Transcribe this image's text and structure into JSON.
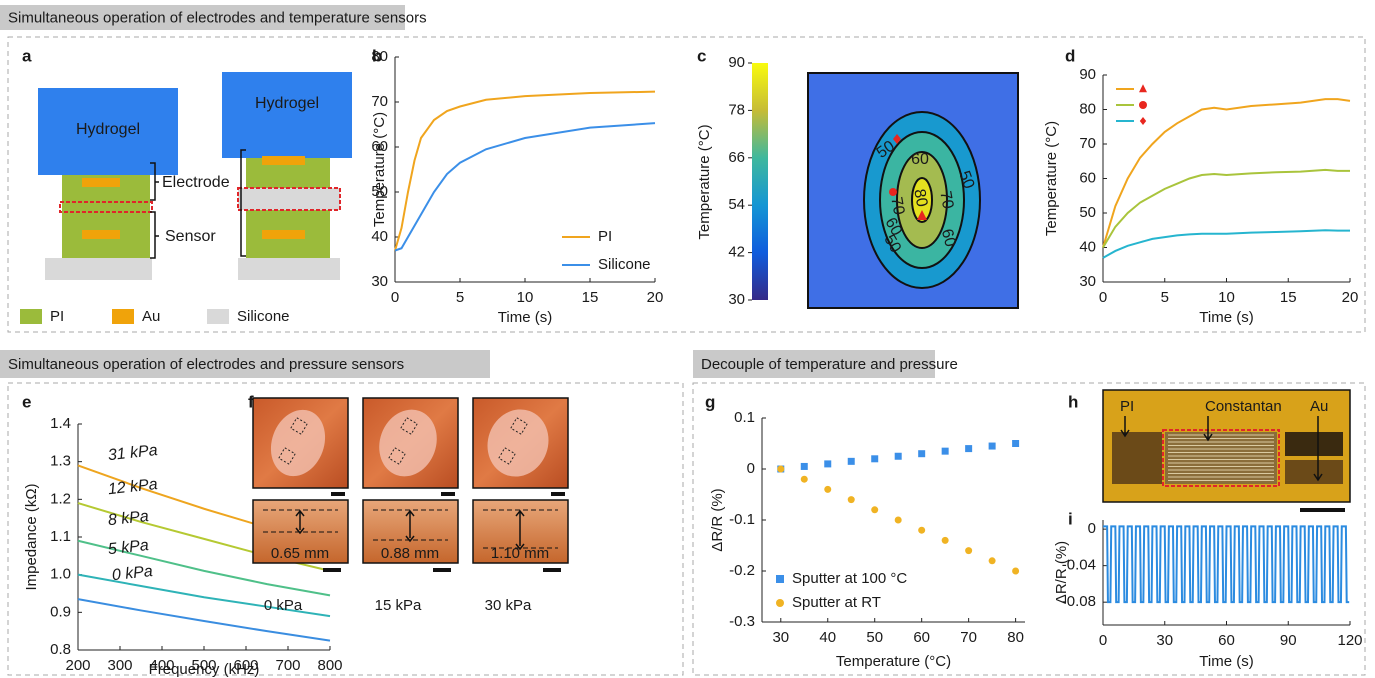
{
  "sections": [
    "Simultaneous operation of electrodes and temperature sensors",
    "Simultaneous operation of electrodes and pressure sensors",
    "Decouple of temperature and pressure"
  ],
  "panel_labels": [
    "a",
    "b",
    "c",
    "d",
    "e",
    "f",
    "g",
    "h",
    "i"
  ],
  "diagram_a": {
    "labels": [
      "Hydrogel",
      "Hydrogel",
      "Electrode",
      "Sensor"
    ],
    "legend": [
      "PI",
      "Au",
      "Silicone"
    ]
  },
  "photos_f": {
    "thickness": [
      "0.65 mm",
      "0.88 mm",
      "1.10 mm"
    ],
    "pressures": [
      "0 kPa",
      "15 kPa",
      "30 kPa"
    ]
  },
  "photo_h": {
    "labels": [
      "PI",
      "Constantan",
      "Au"
    ]
  },
  "chart_data": [
    {
      "type": "line",
      "xlabel": "Time (s)",
      "ylabel": "Temperature (°C)",
      "x": [
        0,
        0.5,
        1,
        1.5,
        2,
        3,
        4,
        5,
        7,
        10,
        15,
        20
      ],
      "series": [
        {
          "name": "PI",
          "color": "#f0a51e",
          "values": [
            37,
            42,
            50,
            57,
            62,
            66,
            68,
            69,
            70.5,
            71.3,
            72,
            72.3
          ]
        },
        {
          "name": "Silicone",
          "color": "#3b8fe8",
          "values": [
            37,
            37.5,
            40,
            42.5,
            45,
            50,
            54,
            56.5,
            59.5,
            62,
            64.3,
            65.3
          ]
        }
      ],
      "xlim": [
        0,
        20
      ],
      "xticks": [
        0,
        5,
        10,
        15,
        20
      ],
      "ylim": [
        30,
        80
      ],
      "yticks": [
        30,
        40,
        50,
        60,
        70,
        80
      ]
    },
    {
      "type": "heatmap",
      "ylabel": "Temperature (°C)",
      "ylim": [
        30,
        90
      ],
      "yticks": [
        30,
        42,
        54,
        66,
        78,
        90
      ],
      "contour_levels": [
        50,
        60,
        70,
        80
      ]
    },
    {
      "type": "line",
      "xlabel": "Time (s)",
      "ylabel": "Temperature (°C)",
      "marker_color": "#e8271f",
      "x": [
        0,
        1,
        2,
        3,
        4,
        5,
        6,
        7,
        8,
        9,
        10,
        12,
        14,
        16,
        18,
        19,
        20
      ],
      "series": [
        {
          "color": "#f0a51e",
          "marker": "triangle",
          "values": [
            40,
            52,
            60,
            66,
            70,
            73.5,
            76,
            78,
            80,
            80.5,
            80,
            81,
            81.5,
            82,
            83,
            83,
            82.5
          ]
        },
        {
          "color": "#a9c43c",
          "marker": "circle",
          "values": [
            40,
            46,
            50,
            53,
            55,
            57,
            58.5,
            60,
            61,
            61.3,
            61,
            61.5,
            61.8,
            62,
            62.5,
            62.2,
            62.2
          ]
        },
        {
          "color": "#26b5cf",
          "marker": "diamond",
          "values": [
            37,
            39,
            40.5,
            41.5,
            42.5,
            43,
            43.5,
            43.8,
            44,
            44,
            44,
            44.3,
            44.5,
            44.7,
            45,
            44.9,
            44.9
          ]
        }
      ],
      "xlim": [
        0,
        20
      ],
      "xticks": [
        0,
        5,
        10,
        15,
        20
      ],
      "ylim": [
        30,
        90
      ],
      "yticks": [
        30,
        40,
        50,
        60,
        70,
        80,
        90
      ]
    },
    {
      "type": "line",
      "xlabel": "Frequency (kHz)",
      "ylabel": "Impedance (kΩ)",
      "x": [
        200,
        350,
        500,
        650,
        800
      ],
      "series": [
        {
          "name": "31 kPa",
          "color": "#eea51f",
          "values": [
            1.29,
            1.23,
            1.175,
            1.125,
            1.075
          ]
        },
        {
          "name": "12 kPa",
          "color": "#b5c932",
          "values": [
            1.19,
            1.14,
            1.095,
            1.05,
            1.01
          ]
        },
        {
          "name": "8 kPa",
          "color": "#4fc089",
          "values": [
            1.09,
            1.05,
            1.01,
            0.975,
            0.945
          ]
        },
        {
          "name": "5 kPa",
          "color": "#2eb3b7",
          "values": [
            1.0,
            0.97,
            0.94,
            0.915,
            0.89
          ]
        },
        {
          "name": "0 kPa",
          "color": "#3a8de0",
          "values": [
            0.935,
            0.905,
            0.877,
            0.85,
            0.825
          ]
        }
      ],
      "xlim": [
        200,
        800
      ],
      "xticks": [
        200,
        300,
        400,
        500,
        600,
        700,
        800
      ],
      "ylim": [
        0.8,
        1.4
      ],
      "yticks": [
        0.8,
        0.9,
        {
          "value": 1,
          "label": "1.0"
        },
        1.1,
        1.2,
        1.3,
        1.4
      ]
    },
    {
      "type": "scatter",
      "xlabel": "Temperature (°C)",
      "ylabel": "ΔR/R (%)",
      "x": [
        30,
        35,
        40,
        45,
        50,
        55,
        60,
        65,
        70,
        75,
        80
      ],
      "series": [
        {
          "name": "Sputter at 100 °C",
          "color": "#3b8fe8",
          "marker": "square",
          "values": [
            0,
            0.005,
            0.01,
            0.015,
            0.02,
            0.025,
            0.03,
            0.035,
            0.04,
            0.045,
            0.05
          ]
        },
        {
          "name": "Sputter at RT",
          "color": "#f0b323",
          "marker": "circle",
          "values": [
            0,
            -0.02,
            -0.04,
            -0.06,
            -0.08,
            -0.1,
            -0.12,
            -0.14,
            -0.16,
            -0.18,
            -0.2
          ]
        }
      ],
      "xlim": [
        26,
        82
      ],
      "xticks": [
        30,
        40,
        50,
        60,
        70,
        80
      ],
      "ylim": [
        -0.3,
        0.1
      ],
      "yticks": [
        -0.3,
        -0.2,
        -0.1,
        0,
        0.1
      ]
    },
    {
      "type": "line",
      "xlabel": "Time (s)",
      "ylabel": "ΔR/R (%)",
      "x": [
        0,
        2,
        2.4,
        3.6,
        4,
        6,
        6.4,
        7.6,
        8,
        10,
        10.4,
        11.6,
        12,
        14,
        14.4,
        15.6,
        16,
        18,
        18.4,
        19.6,
        20,
        22,
        22.4,
        23.6,
        24,
        26,
        26.4,
        27.6,
        28,
        30,
        30.4,
        31.6,
        32,
        34,
        34.4,
        35.6,
        36,
        38,
        38.4,
        39.6,
        40,
        42,
        42.4,
        43.6,
        44,
        46,
        46.4,
        47.6,
        48,
        50,
        50.4,
        51.6,
        52,
        54,
        54.4,
        55.6,
        56,
        58,
        58.4,
        59.6,
        60,
        62,
        62.4,
        63.6,
        64,
        66,
        66.4,
        67.6,
        68,
        70,
        70.4,
        71.6,
        72,
        74,
        74.4,
        75.6,
        76,
        78,
        78.4,
        79.6,
        80,
        82,
        82.4,
        83.6,
        84,
        86,
        86.4,
        87.6,
        88,
        90,
        90.4,
        91.6,
        92,
        94,
        94.4,
        95.6,
        96,
        98,
        98.4,
        99.6,
        100,
        102,
        102.4,
        103.6,
        104,
        106,
        106.4,
        107.6,
        108,
        110,
        110.4,
        111.6,
        112,
        114,
        114.4,
        115.6,
        116,
        118,
        118.4,
        119.6
      ],
      "series": [
        {
          "color": "#2b8be0",
          "values": [
            0.003,
            0.003,
            -0.08,
            -0.08,
            0.003,
            0.003,
            -0.08,
            -0.08,
            0.003,
            0.003,
            -0.08,
            -0.08,
            0.003,
            0.003,
            -0.08,
            -0.08,
            0.003,
            0.003,
            -0.08,
            -0.08,
            0.003,
            0.003,
            -0.08,
            -0.08,
            0.003,
            0.003,
            -0.08,
            -0.08,
            0.003,
            0.003,
            -0.08,
            -0.08,
            0.003,
            0.003,
            -0.08,
            -0.08,
            0.003,
            0.003,
            -0.08,
            -0.08,
            0.003,
            0.003,
            -0.08,
            -0.08,
            0.003,
            0.003,
            -0.08,
            -0.08,
            0.003,
            0.003,
            -0.08,
            -0.08,
            0.003,
            0.003,
            -0.08,
            -0.08,
            0.003,
            0.003,
            -0.08,
            -0.08,
            0.003,
            0.003,
            -0.08,
            -0.08,
            0.003,
            0.003,
            -0.08,
            -0.08,
            0.003,
            0.003,
            -0.08,
            -0.08,
            0.003,
            0.003,
            -0.08,
            -0.08,
            0.003,
            0.003,
            -0.08,
            -0.08,
            0.003,
            0.003,
            -0.08,
            -0.08,
            0.003,
            0.003,
            -0.08,
            -0.08,
            0.003,
            0.003,
            -0.08,
            -0.08,
            0.003,
            0.003,
            -0.08,
            -0.08,
            0.003,
            0.003,
            -0.08,
            -0.08,
            0.003,
            0.003,
            -0.08,
            -0.08,
            0.003,
            0.003,
            -0.08,
            -0.08,
            0.003,
            0.003,
            -0.08,
            -0.08,
            0.003,
            0.003,
            -0.08,
            -0.08,
            0.003,
            0.003,
            -0.08,
            -0.08
          ]
        }
      ],
      "xlim": [
        0,
        120
      ],
      "xticks": [
        0,
        30,
        60,
        90,
        120
      ],
      "ylim": [
        -0.105,
        0.01
      ],
      "yticks": [
        -0.08,
        -0.04,
        0
      ]
    }
  ]
}
